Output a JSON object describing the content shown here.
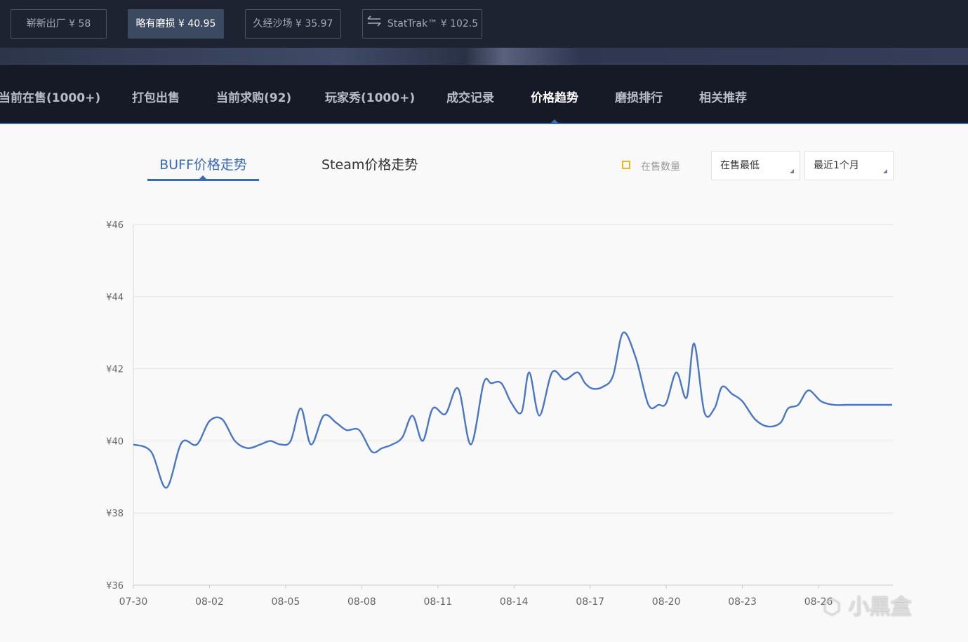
{
  "wear_options": [
    {
      "label": "崭新出厂 ¥ 58",
      "active": false
    },
    {
      "label": "略有磨损 ¥ 40.95",
      "active": true
    },
    {
      "label": "久经沙场 ¥ 35.97",
      "active": false
    },
    {
      "label": "StatTrak™ ¥ 102.5",
      "active": false,
      "icon": "swap-icon"
    }
  ],
  "tabs": [
    {
      "label": "当前在售(1000+)"
    },
    {
      "label": "打包出售"
    },
    {
      "label": "当前求购(92)"
    },
    {
      "label": "玩家秀(1000+)"
    },
    {
      "label": "成交记录"
    },
    {
      "label": "价格趋势",
      "active": true
    },
    {
      "label": "磨损排行"
    },
    {
      "label": "相关推荐"
    }
  ],
  "trend": {
    "buff_tab": "BUFF价格走势",
    "steam_tab": "Steam价格走势",
    "show_count_label": "在售数量",
    "price_type": "在售最低",
    "period": "最近1个月"
  },
  "watermark": "小黑盒",
  "colors": {
    "accent": "#3a6ab4",
    "line": "#4a76c3",
    "checkbox": "#f0b428",
    "nav_bg": "#151a26"
  },
  "chart_data": {
    "type": "line",
    "title": "",
    "xlabel": "",
    "ylabel": "",
    "y_ticks": [
      "¥36",
      "¥38",
      "¥40",
      "¥42",
      "¥44",
      "¥46"
    ],
    "ylim": [
      36,
      46
    ],
    "x_ticks": [
      "07-30",
      "08-02",
      "08-05",
      "08-08",
      "08-11",
      "08-14",
      "08-17",
      "08-20",
      "08-23",
      "08-26"
    ],
    "x_start_label": "07-30",
    "grid": true,
    "series": [
      {
        "x": [
          0,
          0.7,
          1.3,
          1.9,
          2.5,
          3.0,
          3.5,
          4.0,
          4.5,
          5.0,
          5.4,
          5.8,
          6.2,
          6.6,
          7.0,
          7.5,
          8.0,
          8.4,
          8.9,
          9.4,
          9.8,
          10.2,
          10.6,
          11.0,
          11.4,
          11.8,
          12.3,
          12.8,
          13.3,
          13.8,
          14.1,
          14.5,
          14.9,
          15.3,
          15.6,
          16.0,
          16.5,
          17.0,
          17.5,
          17.8,
          18.1,
          18.5,
          18.9,
          19.3,
          19.8,
          20.3,
          20.7,
          21.0,
          21.4,
          21.8,
          22.1,
          22.5,
          22.9,
          23.2,
          23.6,
          24.0,
          24.5,
          25.0,
          25.5,
          25.8,
          26.2,
          26.6,
          27.1,
          27.6,
          28.1,
          28.6,
          29.0,
          29.3,
          29.6,
          29.9
        ],
        "values": [
          39.9,
          39.7,
          38.7,
          39.95,
          39.9,
          40.55,
          40.6,
          40.0,
          39.8,
          39.9,
          40.0,
          39.9,
          40.0,
          40.9,
          39.9,
          40.7,
          40.5,
          40.3,
          40.3,
          39.7,
          39.8,
          39.9,
          40.1,
          40.7,
          40.0,
          40.9,
          40.75,
          41.45,
          39.9,
          41.6,
          41.6,
          41.6,
          41.05,
          40.8,
          41.9,
          40.7,
          41.9,
          41.7,
          41.9,
          41.6,
          41.45,
          41.5,
          41.8,
          43.0,
          42.3,
          41.0,
          41.0,
          41.05,
          41.9,
          41.2,
          42.7,
          40.8,
          40.9,
          41.5,
          41.3,
          41.1,
          40.6,
          40.4,
          40.5,
          40.9,
          41.0,
          41.4,
          41.1,
          41.0,
          41.0,
          41.0,
          41.0,
          41.0,
          41.0,
          41.0
        ]
      }
    ]
  }
}
